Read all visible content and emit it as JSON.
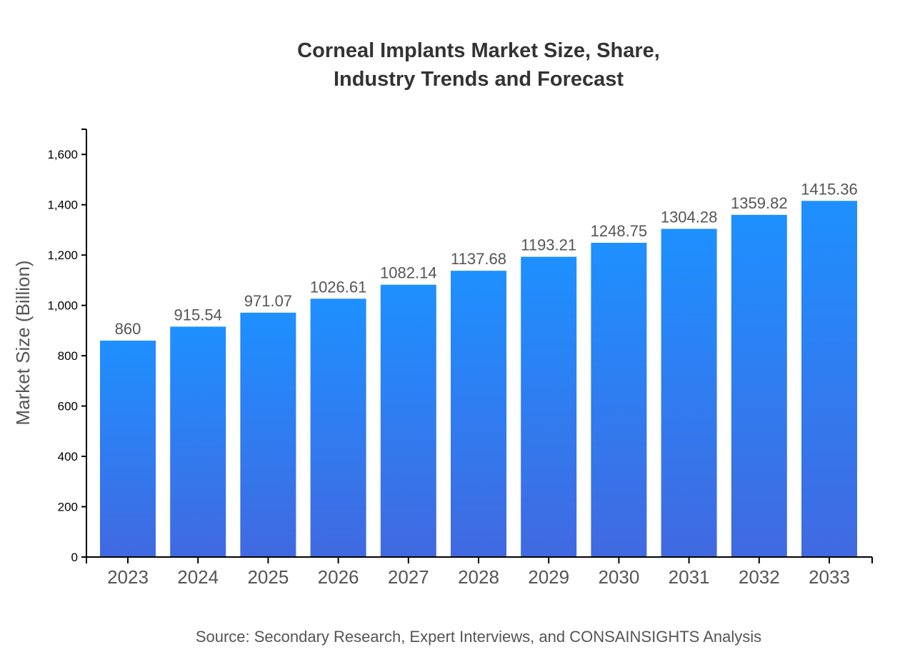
{
  "chart_data": {
    "type": "bar",
    "title_lines": [
      "Corneal Implants Market Size, Share,",
      "Industry Trends and Forecast"
    ],
    "xlabel": "",
    "ylabel": "Market Size (Billion)",
    "categories": [
      "2023",
      "2024",
      "2025",
      "2026",
      "2027",
      "2028",
      "2029",
      "2030",
      "2031",
      "2032",
      "2033"
    ],
    "values": [
      860,
      915.54,
      971.07,
      1026.61,
      1082.14,
      1137.68,
      1193.21,
      1248.75,
      1304.28,
      1359.82,
      1415.36
    ],
    "value_labels": [
      "860",
      "915.54",
      "971.07",
      "1026.61",
      "1082.14",
      "1137.68",
      "1193.21",
      "1248.75",
      "1304.28",
      "1359.82",
      "1415.36"
    ],
    "ylim": [
      0,
      1700
    ],
    "yticks": [
      0,
      200,
      400,
      600,
      800,
      1000,
      1200,
      1400,
      1600
    ],
    "ytick_labels": [
      "0",
      "200",
      "400",
      "600",
      "800",
      "1,000",
      "1,200",
      "1,400",
      "1,600"
    ],
    "grid": false,
    "colors": {
      "bar_top": "#1E90FF",
      "bar_bottom": "#4169E1"
    },
    "source": "Source: Secondary Research, Expert Interviews, and CONSAINSIGHTS Analysis"
  }
}
